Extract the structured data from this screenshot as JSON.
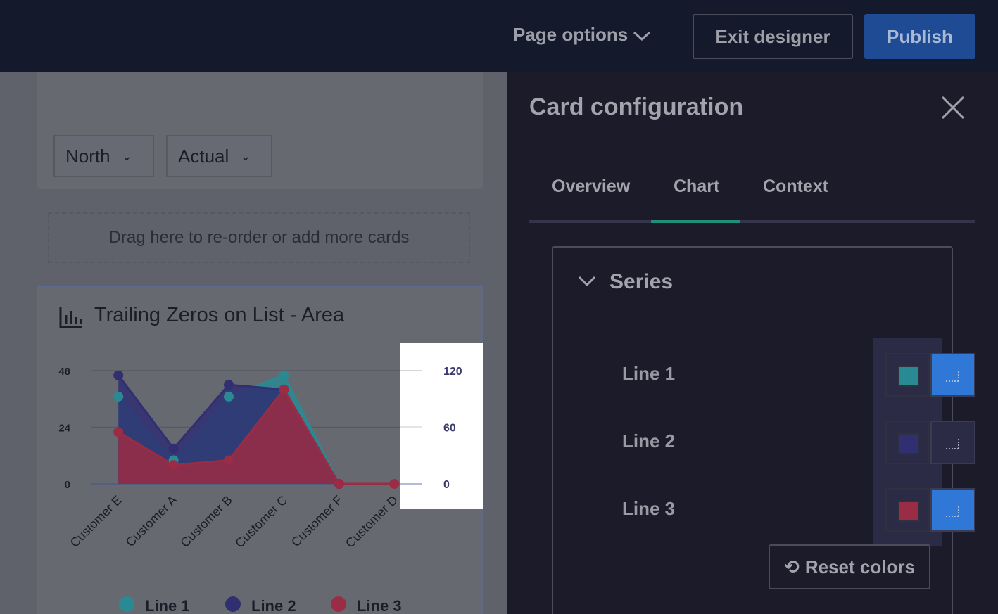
{
  "topbar": {
    "page_options": "Page options",
    "exit": "Exit designer",
    "publish": "Publish"
  },
  "filters": [
    "North",
    "Actual"
  ],
  "drop_zone": "Drag here to re-order or add more cards",
  "card_title": "Trailing Zeros on List - Area",
  "chart_data": {
    "type": "area",
    "categories": [
      "Customer E",
      "Customer A",
      "Customer B",
      "Customer C",
      "Customer F",
      "Customer D"
    ],
    "series": [
      {
        "name": "Line 1",
        "color": "#2a8a93",
        "values": [
          37,
          10,
          37,
          46,
          0,
          null
        ]
      },
      {
        "name": "Line 2",
        "color": "#302f72",
        "values": [
          46,
          15,
          42,
          40,
          0,
          null
        ]
      },
      {
        "name": "Line 3",
        "color": "#9a2c45",
        "values": [
          22,
          8,
          10,
          40,
          0,
          0
        ]
      }
    ],
    "ylim": [
      0,
      48
    ],
    "yticks": [
      0,
      24,
      48
    ],
    "y2lim": [
      0,
      120
    ],
    "y2ticks": [
      0,
      60,
      120
    ],
    "grid": true
  },
  "panel": {
    "title": "Card configuration",
    "tabs": [
      "Overview",
      "Chart",
      "Context"
    ],
    "active_tab": 1,
    "section": "Series",
    "reset": "Reset colors"
  }
}
